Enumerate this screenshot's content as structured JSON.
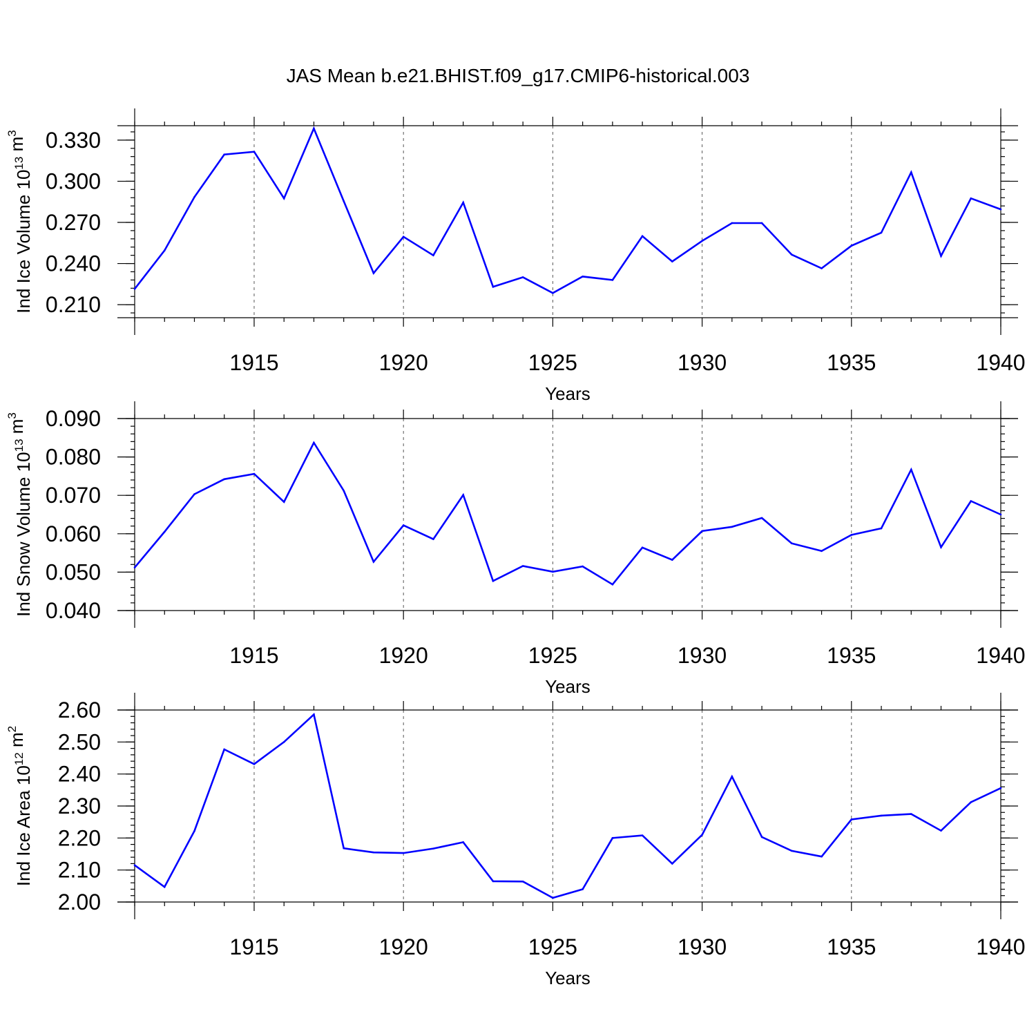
{
  "title": "JAS Mean b.e21.BHIST.f09_g17.CMIP6-historical.003",
  "colors": {
    "line": "#0000ff",
    "axes": "#000000",
    "grid": "#555555"
  },
  "chart_data": [
    {
      "type": "line",
      "xlabel": "Years",
      "ylabel": "Ind Ice Volume 10",
      "ylabel_exponent": "13",
      "ylabel_unit": " m",
      "ylabel_unit_exponent": "3",
      "xlim": [
        1911,
        1940
      ],
      "ylim": [
        0.2005,
        0.3405
      ],
      "xticks": [
        1915,
        1920,
        1925,
        1930,
        1935,
        1940
      ],
      "xtick_labels": [
        "1915",
        "1920",
        "1925",
        "1930",
        "1935",
        "1940"
      ],
      "yticks": [
        0.21,
        0.24,
        0.27,
        0.3,
        0.33
      ],
      "ytick_labels": [
        "0.210",
        "0.240",
        "0.270",
        "0.300",
        "0.330"
      ],
      "grid": "vertical dashed at major x ticks",
      "x": [
        1911,
        1912,
        1913,
        1914,
        1915,
        1916,
        1917,
        1918,
        1919,
        1920,
        1921,
        1922,
        1923,
        1924,
        1925,
        1926,
        1927,
        1928,
        1929,
        1930,
        1931,
        1932,
        1933,
        1934,
        1935,
        1936,
        1937,
        1938,
        1939,
        1940
      ],
      "series": [
        {
          "values": [
            0.2215,
            0.2495,
            0.2885,
            0.3195,
            0.3215,
            0.2875,
            0.3385,
            0.2855,
            0.233,
            0.2595,
            0.246,
            0.2845,
            0.223,
            0.23,
            0.2185,
            0.2305,
            0.228,
            0.26,
            0.2415,
            0.2565,
            0.2695,
            0.2695,
            0.2465,
            0.2365,
            0.253,
            0.2625,
            0.3065,
            0.2455,
            0.2875,
            0.2795
          ]
        }
      ]
    },
    {
      "type": "line",
      "xlabel": "Years",
      "ylabel": "Ind Snow Volume 10",
      "ylabel_exponent": "13",
      "ylabel_unit": " m",
      "ylabel_unit_exponent": "3",
      "xlim": [
        1911,
        1940
      ],
      "ylim": [
        0.04,
        0.09
      ],
      "xticks": [
        1915,
        1920,
        1925,
        1930,
        1935,
        1940
      ],
      "xtick_labels": [
        "1915",
        "1920",
        "1925",
        "1930",
        "1935",
        "1940"
      ],
      "yticks": [
        0.04,
        0.05,
        0.06,
        0.07,
        0.08,
        0.09
      ],
      "ytick_labels": [
        "0.040",
        "0.050",
        "0.060",
        "0.070",
        "0.080",
        "0.090"
      ],
      "grid": "vertical dashed at major x ticks",
      "x": [
        1911,
        1912,
        1913,
        1914,
        1915,
        1916,
        1917,
        1918,
        1919,
        1920,
        1921,
        1922,
        1923,
        1924,
        1925,
        1926,
        1927,
        1928,
        1929,
        1930,
        1931,
        1932,
        1933,
        1934,
        1935,
        1936,
        1937,
        1938,
        1939,
        1940
      ],
      "series": [
        {
          "values": [
            0.0512,
            0.0605,
            0.0703,
            0.0742,
            0.0756,
            0.0683,
            0.0837,
            0.0712,
            0.0527,
            0.0622,
            0.0586,
            0.0701,
            0.0477,
            0.0516,
            0.0501,
            0.0515,
            0.0468,
            0.0564,
            0.0532,
            0.0607,
            0.0618,
            0.0641,
            0.0575,
            0.0555,
            0.0597,
            0.0614,
            0.0767,
            0.0565,
            0.0685,
            0.065
          ]
        }
      ]
    },
    {
      "type": "line",
      "xlabel": "Years",
      "ylabel": "Ind Ice Area 10",
      "ylabel_exponent": "12",
      "ylabel_unit": " m",
      "ylabel_unit_exponent": "2",
      "xlim": [
        1911,
        1940
      ],
      "ylim": [
        2.0,
        2.6
      ],
      "xticks": [
        1915,
        1920,
        1925,
        1930,
        1935,
        1940
      ],
      "xtick_labels": [
        "1915",
        "1920",
        "1925",
        "1930",
        "1935",
        "1940"
      ],
      "yticks": [
        2.0,
        2.1,
        2.2,
        2.3,
        2.4,
        2.5,
        2.6
      ],
      "ytick_labels": [
        "2.00",
        "2.10",
        "2.20",
        "2.30",
        "2.40",
        "2.50",
        "2.60"
      ],
      "grid": "vertical dashed at major x ticks",
      "x": [
        1911,
        1912,
        1913,
        1914,
        1915,
        1916,
        1917,
        1918,
        1919,
        1920,
        1921,
        1922,
        1923,
        1924,
        1925,
        1926,
        1927,
        1928,
        1929,
        1930,
        1931,
        1932,
        1933,
        1934,
        1935,
        1936,
        1937,
        1938,
        1939,
        1940
      ],
      "series": [
        {
          "values": [
            2.115,
            2.047,
            2.222,
            2.477,
            2.431,
            2.5,
            2.586,
            2.168,
            2.155,
            2.153,
            2.167,
            2.187,
            2.065,
            2.064,
            2.013,
            2.04,
            2.2,
            2.208,
            2.12,
            2.21,
            2.392,
            2.203,
            2.16,
            2.142,
            2.258,
            2.27,
            2.275,
            2.223,
            2.312,
            2.356
          ]
        }
      ]
    }
  ]
}
